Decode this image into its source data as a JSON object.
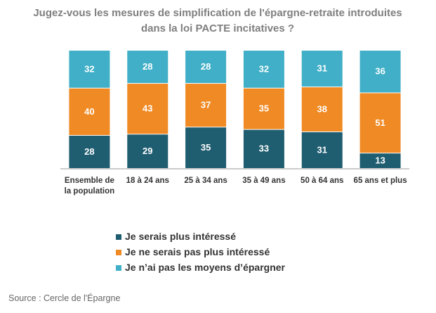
{
  "chart_data": {
    "type": "stacked_bar",
    "title": "Jugez-vous les mesures de simplification de l'épargne-retraite introduites  dans la loi PACTE incitatives ?",
    "categories": [
      "Ensemble de la population",
      "18 à 24 ans",
      "25 à 34 ans",
      "35 à 49 ans",
      "50 à 64 ans",
      "65 ans et plus"
    ],
    "series": [
      {
        "name": "Je serais plus intéressé",
        "color": "#1f5d70",
        "values": [
          28,
          29,
          35,
          33,
          31,
          13
        ]
      },
      {
        "name": "Je ne serais pas plus intéressé",
        "color": "#f08a24",
        "values": [
          40,
          43,
          37,
          35,
          38,
          51
        ]
      },
      {
        "name": "Je n’ai pas les moyens d’épargner",
        "color": "#40afc7",
        "values": [
          32,
          28,
          28,
          32,
          31,
          36
        ]
      }
    ],
    "source": "Source : Cercle de l'Épargne"
  }
}
